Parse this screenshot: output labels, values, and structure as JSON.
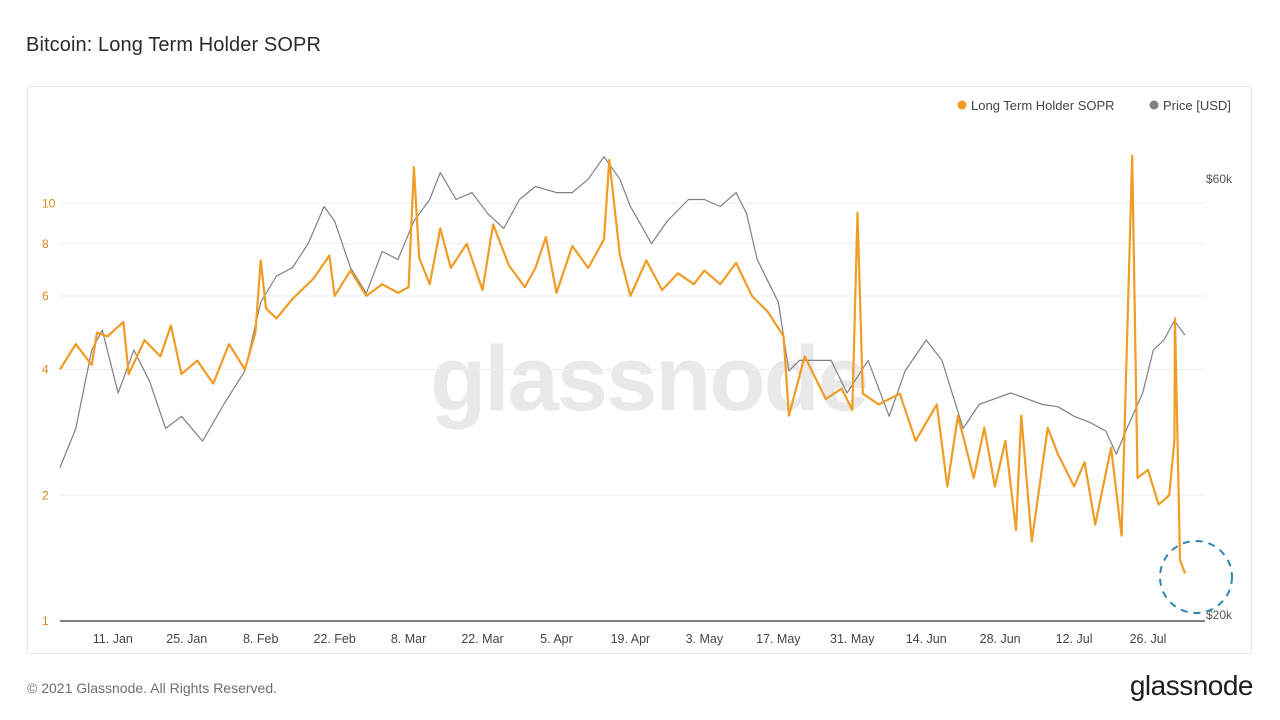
{
  "header": {
    "title": "Bitcoin: Long Term Holder SOPR"
  },
  "footer": {
    "copyright": "© 2021 Glassnode. All Rights Reserved.",
    "logo_text": "glassnode"
  },
  "watermark": "glassnode",
  "colors": {
    "sopr": "#f09c25",
    "price": "#808080",
    "highlight": "#2e86b5"
  },
  "chart_data": {
    "type": "line",
    "title": "Bitcoin: Long Term Holder SOPR",
    "legend_position": "top-right",
    "grid": true,
    "x_range": [
      "2021-01-01",
      "2021-08-02"
    ],
    "x_ticks": [
      "11. Jan",
      "25. Jan",
      "8. Feb",
      "22. Feb",
      "8. Mar",
      "22. Mar",
      "5. Apr",
      "19. Apr",
      "3. May",
      "17. May",
      "31. May",
      "14. Jun",
      "28. Jun",
      "12. Jul",
      "26. Jul"
    ],
    "y_left": {
      "scale": "log",
      "range": [
        1,
        16
      ],
      "ticks": [
        "1",
        "2",
        "4",
        "6",
        "8",
        "10"
      ]
    },
    "y_right": {
      "scale": "log",
      "range": [
        20000,
        70000
      ],
      "ticks": [
        "$20k",
        "$60k"
      ]
    },
    "series": [
      {
        "name": "Long Term Holder SOPR",
        "axis": "left",
        "points": [
          [
            "2021-01-01",
            4.0
          ],
          [
            "2021-01-04",
            4.6
          ],
          [
            "2021-01-07",
            4.1
          ],
          [
            "2021-01-08",
            4.9
          ],
          [
            "2021-01-10",
            4.8
          ],
          [
            "2021-01-13",
            5.2
          ],
          [
            "2021-01-14",
            3.9
          ],
          [
            "2021-01-17",
            4.7
          ],
          [
            "2021-01-20",
            4.3
          ],
          [
            "2021-01-22",
            5.1
          ],
          [
            "2021-01-24",
            3.9
          ],
          [
            "2021-01-27",
            4.2
          ],
          [
            "2021-01-30",
            3.7
          ],
          [
            "2021-02-02",
            4.6
          ],
          [
            "2021-02-05",
            4.0
          ],
          [
            "2021-02-07",
            4.9
          ],
          [
            "2021-02-08",
            7.3
          ],
          [
            "2021-02-09",
            5.6
          ],
          [
            "2021-02-11",
            5.3
          ],
          [
            "2021-02-14",
            5.9
          ],
          [
            "2021-02-18",
            6.6
          ],
          [
            "2021-02-21",
            7.5
          ],
          [
            "2021-02-22",
            6.0
          ],
          [
            "2021-02-25",
            6.9
          ],
          [
            "2021-02-28",
            6.0
          ],
          [
            "2021-03-03",
            6.4
          ],
          [
            "2021-03-06",
            6.1
          ],
          [
            "2021-03-08",
            6.3
          ],
          [
            "2021-03-09",
            12.2
          ],
          [
            "2021-03-10",
            7.4
          ],
          [
            "2021-03-12",
            6.4
          ],
          [
            "2021-03-14",
            8.7
          ],
          [
            "2021-03-16",
            7.0
          ],
          [
            "2021-03-19",
            8.0
          ],
          [
            "2021-03-22",
            6.2
          ],
          [
            "2021-03-24",
            8.9
          ],
          [
            "2021-03-27",
            7.1
          ],
          [
            "2021-03-30",
            6.3
          ],
          [
            "2021-04-01",
            7.0
          ],
          [
            "2021-04-03",
            8.3
          ],
          [
            "2021-04-05",
            6.1
          ],
          [
            "2021-04-08",
            7.9
          ],
          [
            "2021-04-11",
            7.0
          ],
          [
            "2021-04-14",
            8.2
          ],
          [
            "2021-04-15",
            12.7
          ],
          [
            "2021-04-17",
            7.5
          ],
          [
            "2021-04-19",
            6.0
          ],
          [
            "2021-04-22",
            7.3
          ],
          [
            "2021-04-25",
            6.2
          ],
          [
            "2021-04-28",
            6.8
          ],
          [
            "2021-05-01",
            6.4
          ],
          [
            "2021-05-03",
            6.9
          ],
          [
            "2021-05-06",
            6.4
          ],
          [
            "2021-05-09",
            7.2
          ],
          [
            "2021-05-12",
            6.0
          ],
          [
            "2021-05-15",
            5.5
          ],
          [
            "2021-05-18",
            4.8
          ],
          [
            "2021-05-19",
            3.1
          ],
          [
            "2021-05-22",
            4.3
          ],
          [
            "2021-05-26",
            3.4
          ],
          [
            "2021-05-29",
            3.6
          ],
          [
            "2021-05-31",
            3.2
          ],
          [
            "2021-06-01",
            9.5
          ],
          [
            "2021-06-02",
            3.5
          ],
          [
            "2021-06-05",
            3.3
          ],
          [
            "2021-06-09",
            3.5
          ],
          [
            "2021-06-12",
            2.7
          ],
          [
            "2021-06-16",
            3.3
          ],
          [
            "2021-06-18",
            2.1
          ],
          [
            "2021-06-20",
            3.1
          ],
          [
            "2021-06-23",
            2.2
          ],
          [
            "2021-06-25",
            2.9
          ],
          [
            "2021-06-27",
            2.1
          ],
          [
            "2021-06-29",
            2.7
          ],
          [
            "2021-07-01",
            1.65
          ],
          [
            "2021-07-02",
            3.1
          ],
          [
            "2021-07-04",
            1.55
          ],
          [
            "2021-07-07",
            2.9
          ],
          [
            "2021-07-09",
            2.5
          ],
          [
            "2021-07-12",
            2.1
          ],
          [
            "2021-07-14",
            2.4
          ],
          [
            "2021-07-16",
            1.7
          ],
          [
            "2021-07-19",
            2.6
          ],
          [
            "2021-07-21",
            1.6
          ],
          [
            "2021-07-23",
            13.0
          ],
          [
            "2021-07-24",
            2.2
          ],
          [
            "2021-07-26",
            2.3
          ],
          [
            "2021-07-28",
            1.9
          ],
          [
            "2021-07-30",
            2.0
          ],
          [
            "2021-07-31",
            2.7
          ],
          [
            "2021-08-02",
            5.3
          ],
          [
            "2021-08-02",
            1.4
          ],
          [
            "2021-08-02",
            1.3
          ]
        ]
      },
      {
        "name": "Price [USD]",
        "axis": "right",
        "points": [
          [
            "2021-01-01",
            29000
          ],
          [
            "2021-01-04",
            32000
          ],
          [
            "2021-01-07",
            39000
          ],
          [
            "2021-01-09",
            41000
          ],
          [
            "2021-01-12",
            35000
          ],
          [
            "2021-01-15",
            39000
          ],
          [
            "2021-01-18",
            36000
          ],
          [
            "2021-01-21",
            32000
          ],
          [
            "2021-01-24",
            33000
          ],
          [
            "2021-01-28",
            31000
          ],
          [
            "2021-02-01",
            34000
          ],
          [
            "2021-02-05",
            37000
          ],
          [
            "2021-02-08",
            44000
          ],
          [
            "2021-02-11",
            47000
          ],
          [
            "2021-02-14",
            48000
          ],
          [
            "2021-02-17",
            51000
          ],
          [
            "2021-02-20",
            56000
          ],
          [
            "2021-02-22",
            54000
          ],
          [
            "2021-02-25",
            48000
          ],
          [
            "2021-02-28",
            45000
          ],
          [
            "2021-03-03",
            50000
          ],
          [
            "2021-03-06",
            49000
          ],
          [
            "2021-03-09",
            54000
          ],
          [
            "2021-03-12",
            57000
          ],
          [
            "2021-03-14",
            61000
          ],
          [
            "2021-03-17",
            57000
          ],
          [
            "2021-03-20",
            58000
          ],
          [
            "2021-03-23",
            55000
          ],
          [
            "2021-03-26",
            53000
          ],
          [
            "2021-03-29",
            57000
          ],
          [
            "2021-04-01",
            58900
          ],
          [
            "2021-04-05",
            58000
          ],
          [
            "2021-04-08",
            58000
          ],
          [
            "2021-04-11",
            60000
          ],
          [
            "2021-04-14",
            63500
          ],
          [
            "2021-04-17",
            60000
          ],
          [
            "2021-04-19",
            56000
          ],
          [
            "2021-04-23",
            51000
          ],
          [
            "2021-04-26",
            54000
          ],
          [
            "2021-04-30",
            57000
          ],
          [
            "2021-05-03",
            57000
          ],
          [
            "2021-05-06",
            56000
          ],
          [
            "2021-05-09",
            58000
          ],
          [
            "2021-05-11",
            55000
          ],
          [
            "2021-05-13",
            49000
          ],
          [
            "2021-05-17",
            44000
          ],
          [
            "2021-05-19",
            37000
          ],
          [
            "2021-05-21",
            38000
          ],
          [
            "2021-05-24",
            38000
          ],
          [
            "2021-05-27",
            38000
          ],
          [
            "2021-05-30",
            35000
          ],
          [
            "2021-06-03",
            38000
          ],
          [
            "2021-06-07",
            33000
          ],
          [
            "2021-06-10",
            37000
          ],
          [
            "2021-06-14",
            40000
          ],
          [
            "2021-06-17",
            38000
          ],
          [
            "2021-06-21",
            32000
          ],
          [
            "2021-06-24",
            34000
          ],
          [
            "2021-06-27",
            34500
          ],
          [
            "2021-06-30",
            35000
          ],
          [
            "2021-07-03",
            34500
          ],
          [
            "2021-07-06",
            34000
          ],
          [
            "2021-07-09",
            33800
          ],
          [
            "2021-07-12",
            33000
          ],
          [
            "2021-07-15",
            32500
          ],
          [
            "2021-07-18",
            31800
          ],
          [
            "2021-07-20",
            30000
          ],
          [
            "2021-07-22",
            32000
          ],
          [
            "2021-07-25",
            35000
          ],
          [
            "2021-07-27",
            39000
          ],
          [
            "2021-07-29",
            40000
          ],
          [
            "2021-07-31",
            42000
          ],
          [
            "2021-08-02",
            40500
          ]
        ]
      }
    ]
  }
}
